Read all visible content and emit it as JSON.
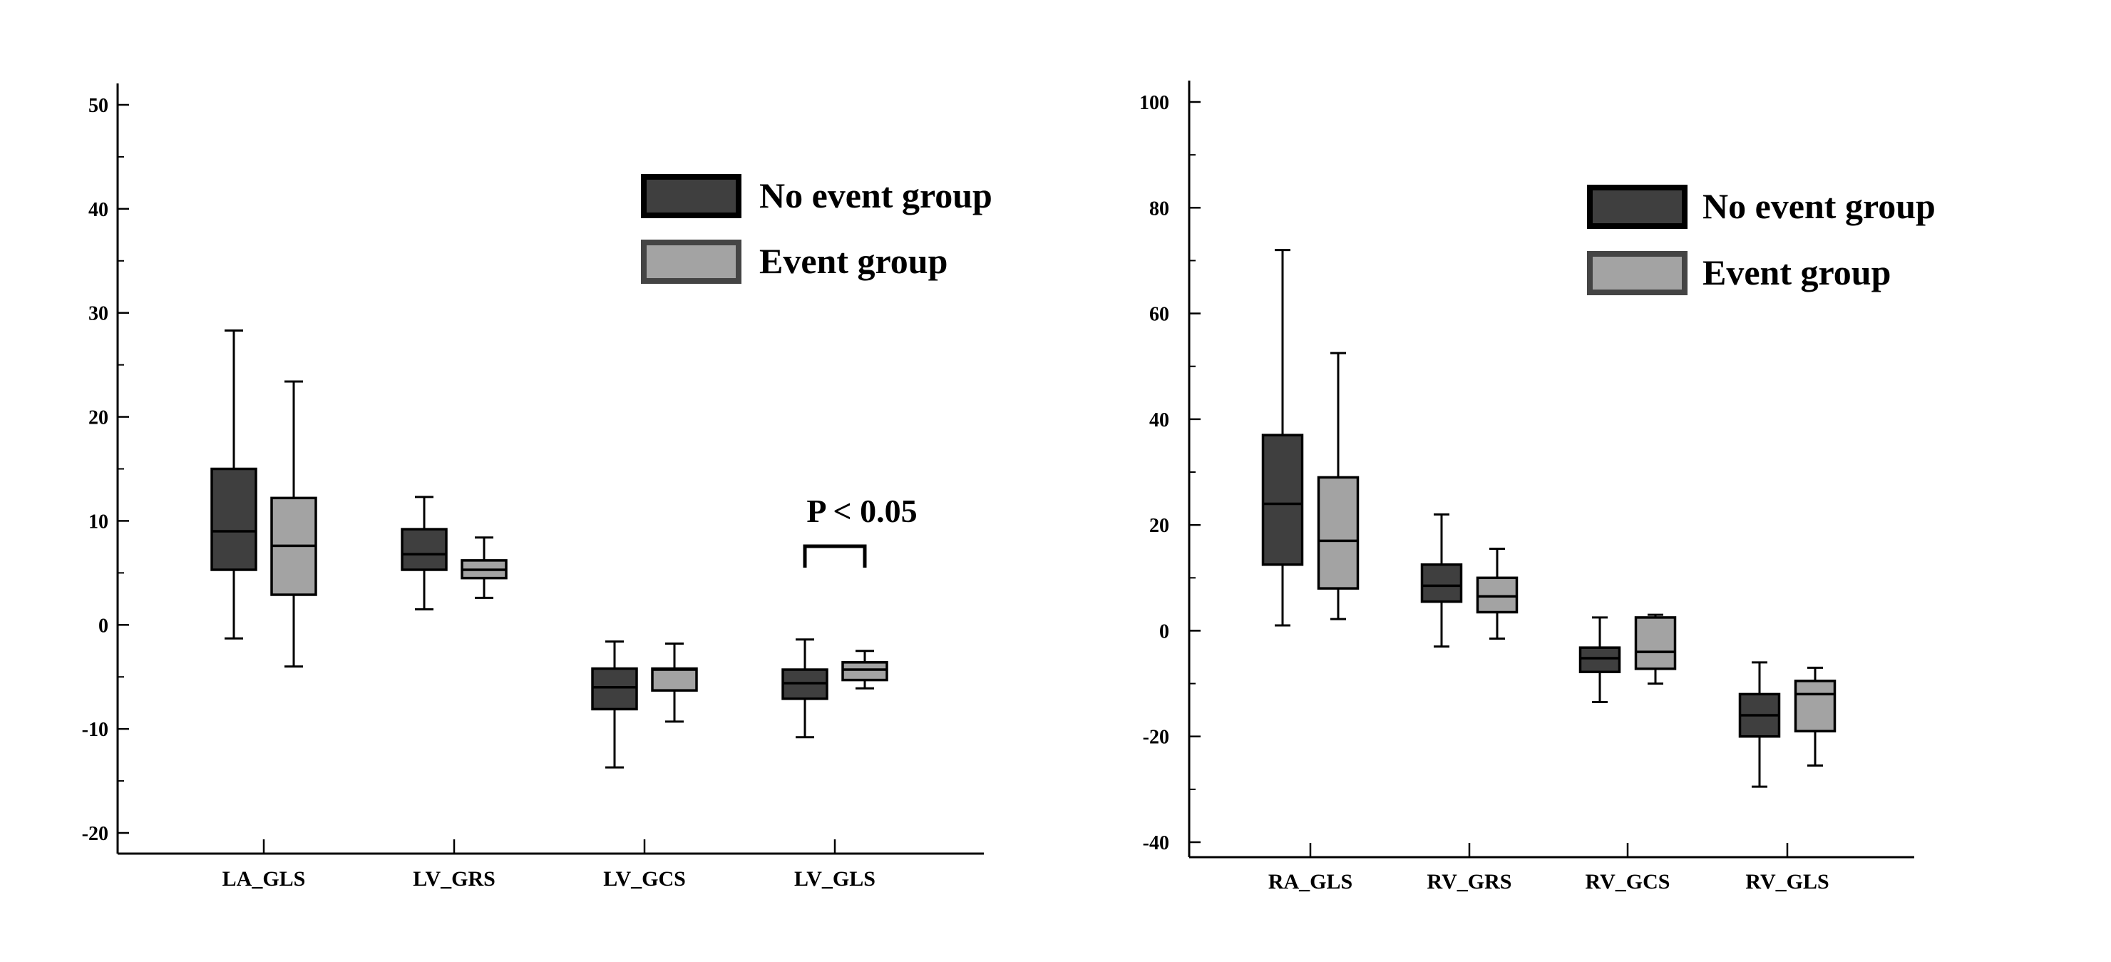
{
  "chart_data": [
    {
      "type": "boxplot",
      "title": "",
      "xlabel": "",
      "ylabel": "",
      "ylim": [
        -20,
        50
      ],
      "yticks": [
        "50",
        "40",
        "30",
        "20",
        "10",
        "0",
        "-10",
        "-20"
      ],
      "categories": [
        "LA_GLS",
        "LV_GRS",
        "LV_GCS",
        "LV_GLS"
      ],
      "legend_position": "top-right",
      "series": [
        {
          "name": "No event group",
          "color": "#3f3f3f",
          "boxes": [
            {
              "min": -1.3,
              "q1": 5.3,
              "median": 9.0,
              "q3": 15.0,
              "max": 28.3
            },
            {
              "min": 1.5,
              "q1": 5.3,
              "median": 6.8,
              "q3": 9.2,
              "max": 12.3
            },
            {
              "min": -13.7,
              "q1": -8.1,
              "median": -6.0,
              "q3": -4.2,
              "max": -1.6
            },
            {
              "min": -10.8,
              "q1": -7.1,
              "median": -5.6,
              "q3": -4.3,
              "max": -1.4
            }
          ]
        },
        {
          "name": "Event group",
          "color": "#a3a3a3",
          "boxes": [
            {
              "min": -4.0,
              "q1": 2.9,
              "median": 7.6,
              "q3": 12.2,
              "max": 23.4
            },
            {
              "min": 2.6,
              "q1": 4.5,
              "median": 5.3,
              "q3": 6.2,
              "max": 8.4
            },
            {
              "min": -9.3,
              "q1": -6.3,
              "median": -4.3,
              "q3": -4.2,
              "max": -1.8
            },
            {
              "min": -6.1,
              "q1": -5.3,
              "median": -4.3,
              "q3": -3.6,
              "max": -2.5
            }
          ]
        }
      ],
      "annotation": {
        "text": "P < 0.05",
        "category": "LV_GLS"
      }
    },
    {
      "type": "boxplot",
      "title": "",
      "xlabel": "",
      "ylabel": "",
      "ylim": [
        -40,
        100
      ],
      "yticks": [
        "100",
        "80",
        "60",
        "40",
        "20",
        "0",
        "-20",
        "-40"
      ],
      "categories": [
        "RA_GLS",
        "RV_GRS",
        "RV_GCS",
        "RV_GLS"
      ],
      "legend_position": "top-right",
      "series": [
        {
          "name": "No event group",
          "color": "#3f3f3f",
          "boxes": [
            {
              "min": 1.0,
              "q1": 12.5,
              "median": 24.0,
              "q3": 37.0,
              "max": 72.0
            },
            {
              "min": -3.0,
              "q1": 5.5,
              "median": 8.5,
              "q3": 12.5,
              "max": 22.0
            },
            {
              "min": -13.5,
              "q1": -7.8,
              "median": -5.2,
              "q3": -3.2,
              "max": 2.5
            },
            {
              "min": -29.5,
              "q1": -20.0,
              "median": -16.0,
              "q3": -12.0,
              "max": -6.0
            }
          ]
        },
        {
          "name": "Event group",
          "color": "#a3a3a3",
          "boxes": [
            {
              "min": 2.2,
              "q1": 8.0,
              "median": 17.0,
              "q3": 29.0,
              "max": 52.5
            },
            {
              "min": -1.5,
              "q1": 3.5,
              "median": 6.5,
              "q3": 10.0,
              "max": 15.5
            },
            {
              "min": -10.0,
              "q1": -7.2,
              "median": -4.0,
              "q3": 2.5,
              "max": 3.0
            },
            {
              "min": -25.5,
              "q1": -19.0,
              "median": -12.0,
              "q3": -9.5,
              "max": -7.0
            }
          ]
        }
      ]
    }
  ]
}
